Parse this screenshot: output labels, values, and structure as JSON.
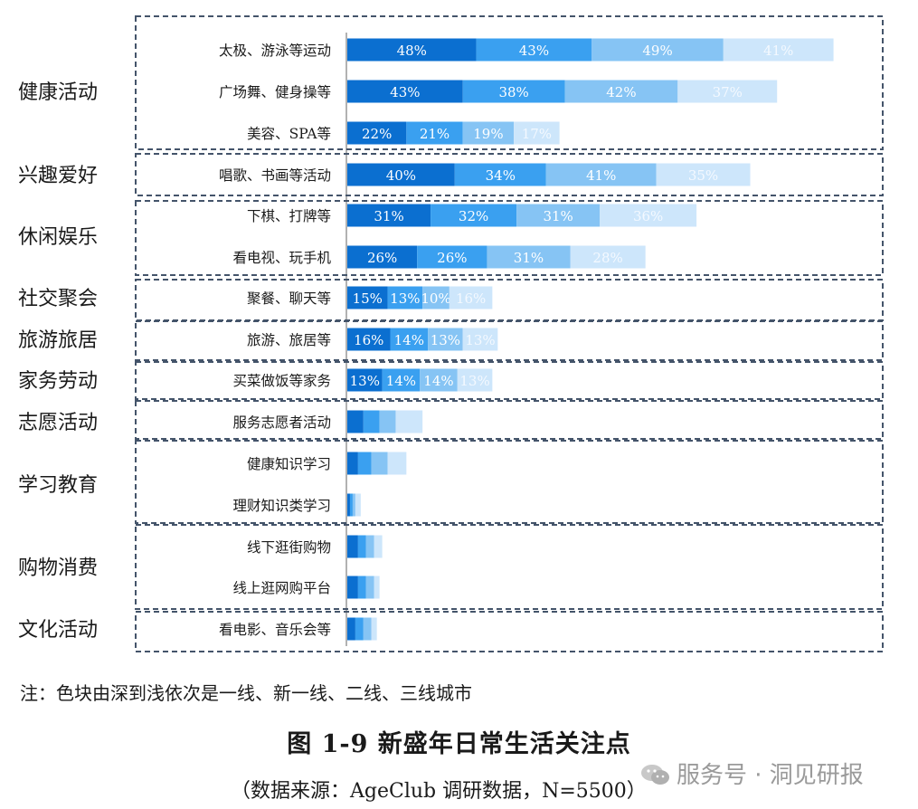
{
  "chart_data": {
    "type": "bar",
    "stacked": true,
    "orientation": "horizontal",
    "series_colors": [
      "#0b6fd0",
      "#3aa0f0",
      "#86c4f4",
      "#cde6fb"
    ],
    "label_colors": [
      "#ffffff",
      "#ffffff",
      "#ffffff",
      "#f4f9ff"
    ],
    "groups": [
      {
        "name": "健康活动",
        "rows": [
          {
            "label": "太极、游泳等运动",
            "values": [
              48,
              43,
              49,
              41
            ],
            "show_labels": true
          },
          {
            "label": "广场舞、健身操等",
            "values": [
              43,
              38,
              42,
              37
            ],
            "show_labels": true
          },
          {
            "label": "美容、SPA等",
            "values": [
              22,
              21,
              19,
              17
            ],
            "show_labels": true
          }
        ]
      },
      {
        "name": "兴趣爱好",
        "rows": [
          {
            "label": "唱歌、书画等活动",
            "values": [
              40,
              34,
              41,
              35
            ],
            "show_labels": true
          }
        ]
      },
      {
        "name": "休闲娱乐",
        "rows": [
          {
            "label": "下棋、打牌等",
            "values": [
              31,
              32,
              31,
              36
            ],
            "show_labels": true
          },
          {
            "label": "看电视、玩手机",
            "values": [
              26,
              26,
              31,
              28
            ],
            "show_labels": true
          }
        ]
      },
      {
        "name": "社交聚会",
        "rows": [
          {
            "label": "聚餐、聊天等",
            "values": [
              15,
              13,
              10,
              16
            ],
            "show_labels": true
          }
        ]
      },
      {
        "name": "旅游旅居",
        "rows": [
          {
            "label": "旅游、旅居等",
            "values": [
              16,
              14,
              13,
              13
            ],
            "show_labels": true
          }
        ]
      },
      {
        "name": "家务劳动",
        "rows": [
          {
            "label": "买菜做饭等家务",
            "values": [
              13,
              14,
              14,
              13
            ],
            "show_labels": true
          }
        ]
      },
      {
        "name": "志愿活动",
        "rows": [
          {
            "label": "服务志愿者活动",
            "values": [
              6,
              6,
              6,
              10
            ],
            "show_labels": false
          }
        ]
      },
      {
        "name": "学习教育",
        "rows": [
          {
            "label": "健康知识学习",
            "values": [
              4,
              5,
              6,
              7
            ],
            "show_labels": false
          },
          {
            "label": "理财知识类学习",
            "values": [
              1,
              1,
              1,
              2
            ],
            "show_labels": false
          }
        ]
      },
      {
        "name": "购物消费",
        "rows": [
          {
            "label": "线下逛街购物",
            "values": [
              4,
              3,
              3,
              3
            ],
            "show_labels": false
          },
          {
            "label": "线上逛网购平台",
            "values": [
              4,
              3,
              3,
              2
            ],
            "show_labels": false
          }
        ]
      },
      {
        "name": "文化活动",
        "rows": [
          {
            "label": "看电影、音乐会等",
            "values": [
              3,
              3,
              3,
              2
            ],
            "show_labels": false
          }
        ]
      }
    ],
    "value_suffix": "%"
  },
  "note": "注：色块由深到浅依次是一线、新一线、二线、三线城市",
  "figure_title": "图 1-9  新盛年日常生活关注点",
  "source": "（数据来源：AgeClub 调研数据，N=5500）",
  "watermark": "服务号 · 洞见研报"
}
